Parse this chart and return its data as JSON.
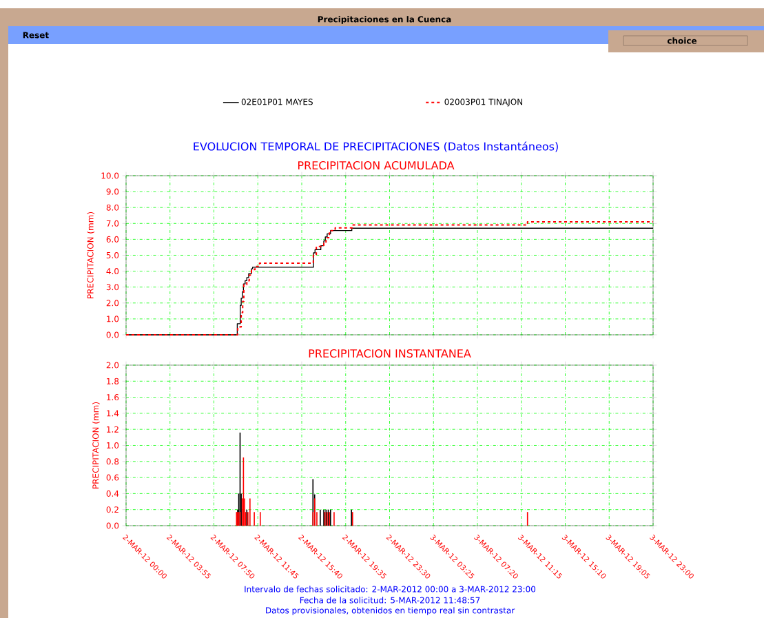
{
  "chart_data": [
    {
      "type": "step",
      "title": "EVOLUCION TEMPORAL DE PRECIPITACIONES (Datos Instantáneos)",
      "subtitle": "PRECIPITACION ACUMULADA",
      "ylabel": "PRECIPITACION (mm)",
      "annotations": [
        "Precipitaciones en la Cuenca",
        "Reset",
        "choice"
      ],
      "series": [
        {
          "name": "02E01P01 MAYES",
          "color": "#000000",
          "line_style": "solid",
          "x": [
            "2012-03-02T00:00",
            "2012-03-02T09:55",
            "2012-03-02T10:11",
            "2012-03-02T10:16",
            "2012-03-02T10:22",
            "2012-03-02T10:28",
            "2012-03-02T10:37",
            "2012-03-02T10:46",
            "2012-03-02T10:56",
            "2012-03-02T11:11",
            "2012-03-02T11:17",
            "2012-03-02T16:43",
            "2012-03-02T16:51",
            "2012-03-02T17:22",
            "2012-03-02T17:38",
            "2012-03-02T17:46",
            "2012-03-02T17:56",
            "2012-03-02T18:14",
            "2012-03-02T20:08",
            "2012-03-03T23:00"
          ],
          "values": [
            0,
            0.7,
            1.85,
            2.3,
            2.7,
            3.2,
            3.4,
            3.6,
            3.85,
            4.15,
            4.25,
            5.15,
            5.35,
            5.6,
            5.9,
            6.15,
            6.35,
            6.55,
            6.7,
            6.7
          ]
        },
        {
          "name": "02003P01 TINAJON",
          "color": "#ff0000",
          "line_style": "dashed",
          "x": [
            "2012-03-02T00:00",
            "2012-03-02T09:57",
            "2012-03-02T10:16",
            "2012-03-02T10:24",
            "2012-03-02T10:30",
            "2012-03-02T10:46",
            "2012-03-02T10:59",
            "2012-03-02T11:11",
            "2012-03-02T11:30",
            "2012-03-02T11:54",
            "2012-03-02T16:42",
            "2012-03-02T16:58",
            "2012-03-02T17:38",
            "2012-03-02T17:50",
            "2012-03-02T18:08",
            "2012-03-02T18:39",
            "2012-03-02T20:11",
            "2012-03-03T11:48",
            "2012-03-03T23:00"
          ],
          "values": [
            0,
            0.5,
            1.4,
            2.1,
            3.15,
            3.4,
            3.75,
            4.1,
            4.3,
            4.5,
            5.0,
            5.55,
            5.75,
            6.1,
            6.55,
            6.72,
            6.9,
            7.1,
            7.1
          ]
        }
      ],
      "xlim": [
        "2012-03-02T00:00",
        "2012-03-03T23:00"
      ],
      "xticks": [
        {
          "value": "2012-03-02T00:00",
          "label": null
        },
        {
          "value": "2012-03-02T03:55",
          "label": null
        },
        {
          "value": "2012-03-02T07:50",
          "label": null
        },
        {
          "value": "2012-03-02T11:45",
          "label": null
        },
        {
          "value": "2012-03-02T15:40",
          "label": null
        },
        {
          "value": "2012-03-02T19:35",
          "label": null
        },
        {
          "value": "2012-03-02T23:30",
          "label": null
        },
        {
          "value": "2012-03-03T03:25",
          "label": null
        },
        {
          "value": "2012-03-03T07:20",
          "label": null
        },
        {
          "value": "2012-03-03T11:15",
          "label": null
        },
        {
          "value": "2012-03-03T15:10",
          "label": null
        },
        {
          "value": "2012-03-03T19:05",
          "label": null
        },
        {
          "value": "2012-03-03T23:00",
          "label": null
        }
      ],
      "ylim": [
        0,
        10
      ],
      "yticks": [
        {
          "value": 0,
          "label": "0.0"
        },
        {
          "value": 1,
          "label": "1.0"
        },
        {
          "value": 2,
          "label": "2.0"
        },
        {
          "value": 3,
          "label": "3.0"
        },
        {
          "value": 4,
          "label": "4.0"
        },
        {
          "value": 5,
          "label": "5.0"
        },
        {
          "value": 6,
          "label": "6.0"
        },
        {
          "value": 7,
          "label": "7.0"
        },
        {
          "value": 8,
          "label": "8.0"
        },
        {
          "value": 9,
          "label": "9.0"
        },
        {
          "value": 10,
          "label": "10.0"
        }
      ],
      "tick_labels": "y",
      "grid": true,
      "legend": "top"
    },
    {
      "type": "bar",
      "title": "PRECIPITACION INSTANTANEA",
      "ylabel": "PRECIPITACION (mm)",
      "annotations": [
        "Intervalo de fechas solicitado:  2-MAR-2012 00:00 a  3-MAR-2012 23:00",
        "Fecha de la solicitud:  5-MAR-2012 11:48:57",
        "Datos provisionales, obtenidos en tiempo real sin contrastar"
      ],
      "series": [
        {
          "color": "#000000",
          "x": [
            "2012-03-02T09:57",
            "2012-03-02T10:03",
            "2012-03-02T10:10",
            "2012-03-02T10:16",
            "2012-03-02T10:46",
            "2012-03-02T16:40",
            "2012-03-02T16:49",
            "2012-03-02T17:19",
            "2012-03-02T17:38",
            "2012-03-02T17:50",
            "2012-03-02T18:02",
            "2012-03-02T18:14",
            "2012-03-02T20:06"
          ],
          "values": [
            0.2,
            0.4,
            1.16,
            0.4,
            0.2,
            0.58,
            0.39,
            0.2,
            0.2,
            0.2,
            0.2,
            0.2,
            0.2
          ]
        },
        {
          "color": "#ff0000",
          "x": [
            "2012-03-02T09:51",
            "2012-03-02T09:57",
            "2012-03-02T10:03",
            "2012-03-02T10:10",
            "2012-03-02T10:22",
            "2012-03-02T10:28",
            "2012-03-02T10:34",
            "2012-03-02T10:40",
            "2012-03-02T10:52",
            "2012-03-02T11:03",
            "2012-03-02T11:26",
            "2012-03-02T11:58",
            "2012-03-02T16:40",
            "2012-03-02T16:49",
            "2012-03-02T17:01",
            "2012-03-02T17:44",
            "2012-03-02T17:56",
            "2012-03-02T18:08",
            "2012-03-02T18:33",
            "2012-03-02T20:12",
            "2012-03-03T11:48"
          ],
          "values": [
            0.17,
            0.17,
            0.17,
            0.17,
            0.34,
            0.85,
            0.34,
            0.17,
            0.17,
            0.34,
            0.17,
            0.17,
            0.17,
            0.34,
            0.17,
            0.17,
            0.17,
            0.17,
            0.17,
            0.17,
            0.17
          ]
        }
      ],
      "xlim": [
        "2012-03-02T00:00",
        "2012-03-03T23:00"
      ],
      "xticks": [
        {
          "value": "2012-03-02T00:00",
          "label": "2-MAR-12 00:00"
        },
        {
          "value": "2012-03-02T03:55",
          "label": "2-MAR-12 03:55"
        },
        {
          "value": "2012-03-02T07:50",
          "label": "2-MAR-12 07:50"
        },
        {
          "value": "2012-03-02T11:45",
          "label": "2-MAR-12 11:45"
        },
        {
          "value": "2012-03-02T15:40",
          "label": "2-MAR-12 15:40"
        },
        {
          "value": "2012-03-02T19:35",
          "label": "2-MAR-12 19:35"
        },
        {
          "value": "2012-03-02T23:30",
          "label": "2-MAR-12 23:30"
        },
        {
          "value": "2012-03-03T03:25",
          "label": "3-MAR-12 03:25"
        },
        {
          "value": "2012-03-03T07:20",
          "label": "3-MAR-12 07:20"
        },
        {
          "value": "2012-03-03T11:15",
          "label": "3-MAR-12 11:15"
        },
        {
          "value": "2012-03-03T15:10",
          "label": "3-MAR-12 15:10"
        },
        {
          "value": "2012-03-03T19:05",
          "label": "3-MAR-12 19:05"
        },
        {
          "value": "2012-03-03T23:00",
          "label": "3-MAR-12 23:00"
        }
      ],
      "ylim": [
        0,
        2
      ],
      "yticks": [
        {
          "value": 0,
          "label": "0.0"
        },
        {
          "value": 0.2,
          "label": "0.2"
        },
        {
          "value": 0.4,
          "label": "0.4"
        },
        {
          "value": 0.6,
          "label": "0.6"
        },
        {
          "value": 0.8,
          "label": "0.8"
        },
        {
          "value": 1,
          "label": "1.0"
        },
        {
          "value": 1.2,
          "label": "1.2"
        },
        {
          "value": 1.4,
          "label": "1.4"
        },
        {
          "value": 1.6,
          "label": "1.6"
        },
        {
          "value": 1.8,
          "label": "1.8"
        },
        {
          "value": 2,
          "label": "2.0"
        }
      ],
      "grid": true
    }
  ]
}
